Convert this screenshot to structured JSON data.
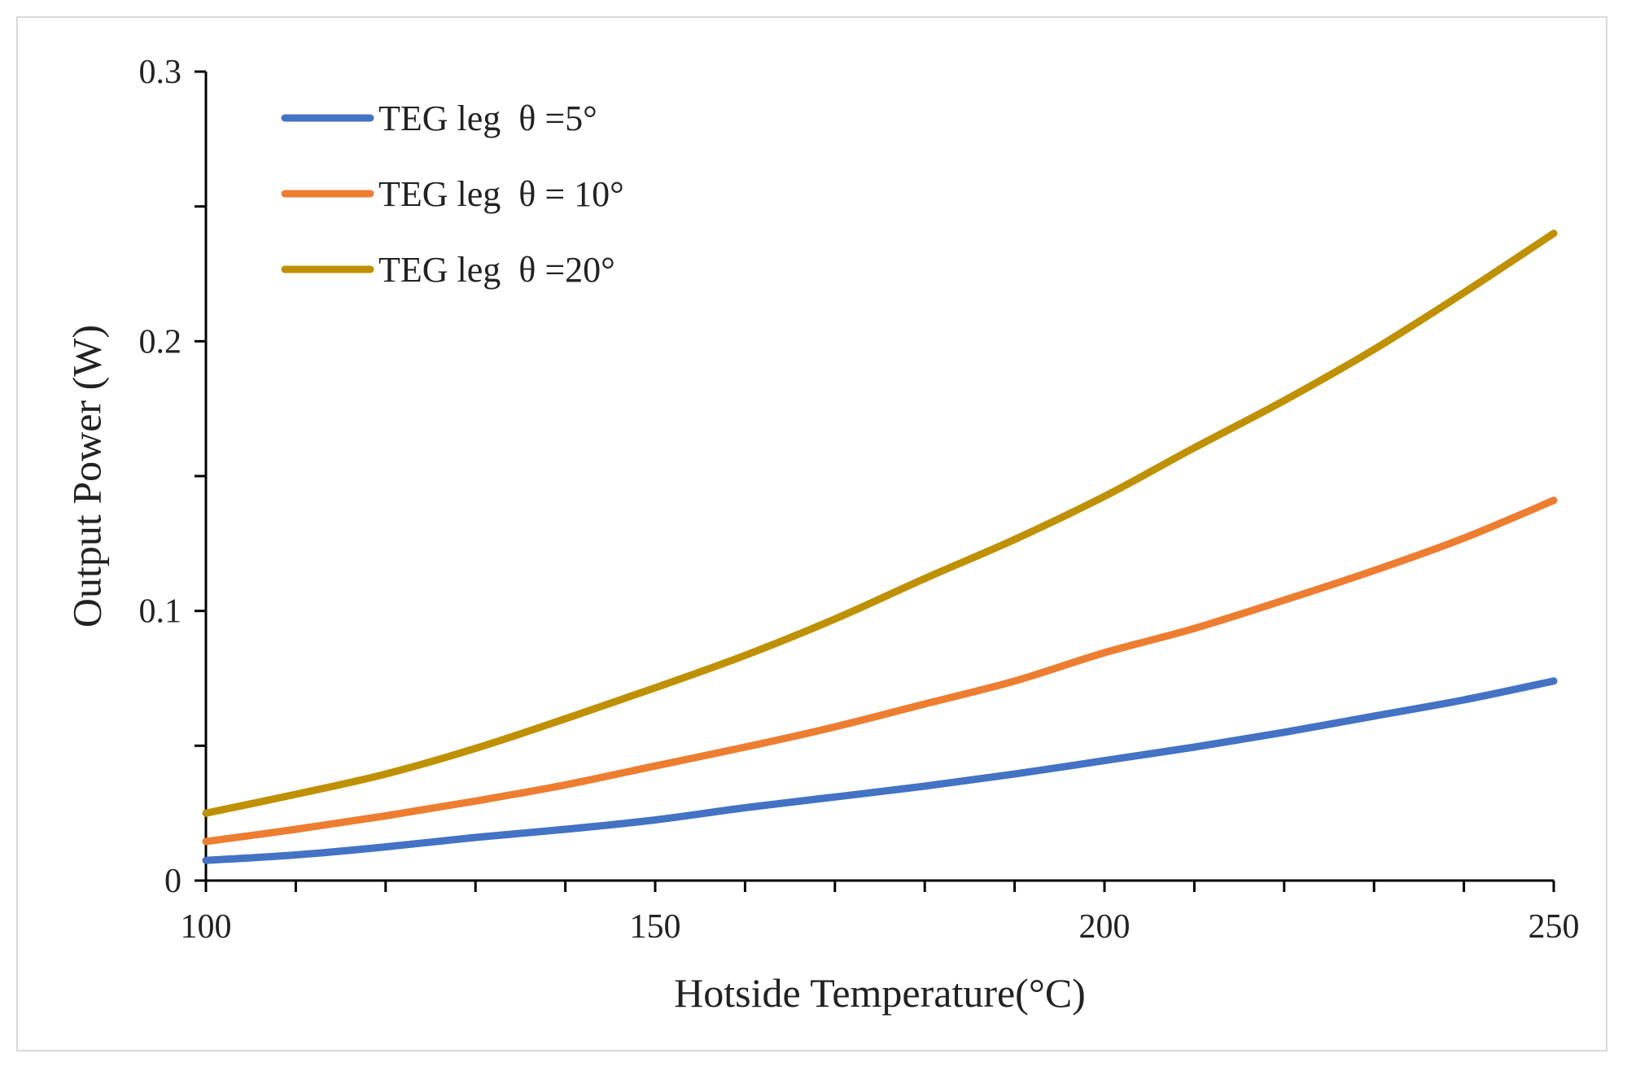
{
  "chart_data": {
    "type": "line",
    "title": "",
    "xlabel": "Hotside Temperature(°C)",
    "ylabel": "Output Power (W)",
    "xlim": [
      100,
      250
    ],
    "ylim": [
      0,
      0.3
    ],
    "x_ticks": [
      100,
      150,
      200,
      250
    ],
    "x_tick_labels": [
      "100",
      "150",
      "200",
      "250"
    ],
    "y_ticks": [
      0,
      0.1,
      0.2,
      0.3
    ],
    "y_tick_labels": [
      "0",
      "0.1",
      "0.2",
      "0.3"
    ],
    "x_minor_step": 10,
    "y_minor_step": 0.05,
    "grid": false,
    "legend_position": "top-left",
    "series": [
      {
        "name": "TEG leg  θ =5°",
        "color": "#4472C4",
        "x": [
          100,
          110,
          120,
          130,
          140,
          150,
          160,
          170,
          180,
          190,
          200,
          210,
          220,
          230,
          240,
          250
        ],
        "values": [
          0.0075,
          0.0095,
          0.0125,
          0.016,
          0.019,
          0.0225,
          0.027,
          0.031,
          0.035,
          0.0395,
          0.0445,
          0.0495,
          0.055,
          0.061,
          0.067,
          0.074
        ]
      },
      {
        "name": "TEG leg  θ = 10°",
        "color": "#ED7D31",
        "x": [
          100,
          110,
          120,
          130,
          140,
          150,
          160,
          170,
          180,
          190,
          200,
          210,
          220,
          230,
          240,
          250
        ],
        "values": [
          0.0145,
          0.019,
          0.024,
          0.0295,
          0.0355,
          0.0425,
          0.0495,
          0.057,
          0.0655,
          0.074,
          0.0845,
          0.0935,
          0.104,
          0.115,
          0.127,
          0.141
        ]
      },
      {
        "name": "TEG leg  θ =20°",
        "color": "#BF9000",
        "x": [
          100,
          110,
          120,
          130,
          140,
          150,
          160,
          170,
          180,
          190,
          200,
          210,
          220,
          230,
          240,
          250
        ],
        "values": [
          0.025,
          0.032,
          0.0395,
          0.049,
          0.06,
          0.0715,
          0.0835,
          0.097,
          0.112,
          0.1265,
          0.1425,
          0.1605,
          0.178,
          0.197,
          0.218,
          0.24
        ]
      }
    ]
  }
}
